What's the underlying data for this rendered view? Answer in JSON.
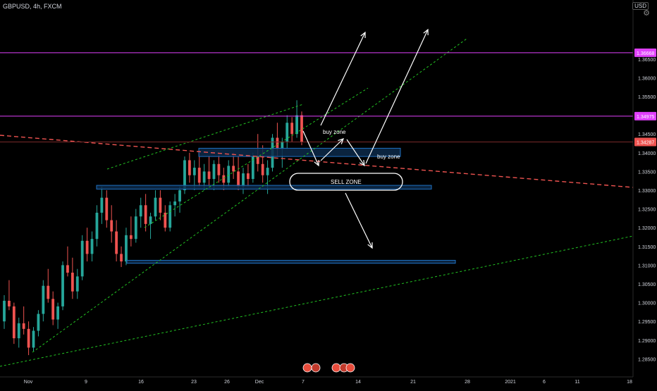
{
  "header": {
    "symbol": "GBPUSD, 4h, FXCM",
    "currency": "USD",
    "settings_icon": "gear-icon"
  },
  "colors": {
    "background": "#000000",
    "bullish": "#26a69a",
    "bearish": "#ef5350",
    "resistance_line": "#e040fb",
    "trend_line": "#22c322",
    "zone_fill": "#0d2a4a",
    "zone_border": "#1f6fbf",
    "arrow": "#ffffff",
    "price_line": "#ef5350",
    "axis_text": "#d1d4dc"
  },
  "chart_data": {
    "type": "candlestick",
    "symbol": "GBPUSD",
    "timeframe": "4h",
    "source": "FXCM",
    "ylim": [
      1.28,
      1.375
    ],
    "y_ticks": [
      "1.28500",
      "1.29000",
      "1.29500",
      "1.30000",
      "1.30500",
      "1.31000",
      "1.31500",
      "1.32000",
      "1.32500",
      "1.33000",
      "1.33500",
      "1.34000",
      "1.34500",
      "1.35000",
      "1.35500",
      "1.36000",
      "1.36500"
    ],
    "x_ticks": [
      "Nov",
      "9",
      "16",
      "23",
      "26",
      "Dec",
      "7",
      "14",
      "21",
      "28",
      "2021",
      "6",
      "11",
      "18"
    ],
    "price_badges": [
      {
        "label": "1.36668",
        "value": 1.36668,
        "color": "#e040fb"
      },
      {
        "label": "1.34975",
        "value": 1.34975,
        "color": "#e040fb"
      },
      {
        "label": "1.34287",
        "value": 1.34287,
        "color": "#ef5350"
      }
    ],
    "horizontal_lines": [
      {
        "value": 1.36668,
        "color": "#e040fb"
      },
      {
        "value": 1.34975,
        "color": "#e040fb"
      }
    ],
    "annotations": [
      {
        "text": "buy zone",
        "price": 1.3405
      },
      {
        "text": "buy zone",
        "price": 1.3355
      },
      {
        "text": "SELL ZONE",
        "price": 1.3275
      }
    ],
    "zones": [
      {
        "price_top": 1.3412,
        "price_bottom": 1.339
      },
      {
        "price_top": 1.3313,
        "price_bottom": 1.3303
      },
      {
        "price_top": 1.3113,
        "price_bottom": 1.3105
      }
    ],
    "candles_approx": [
      [
        1.295,
        1.302,
        1.293,
        1.3005
      ],
      [
        1.3005,
        1.306,
        1.298,
        1.299
      ],
      [
        1.299,
        1.3,
        1.289,
        1.2905
      ],
      [
        1.2905,
        1.296,
        1.288,
        1.2945
      ],
      [
        1.2945,
        1.299,
        1.2915,
        1.293
      ],
      [
        1.293,
        1.295,
        1.286,
        1.288
      ],
      [
        1.288,
        1.2935,
        1.287,
        1.2925
      ],
      [
        1.2925,
        1.298,
        1.291,
        1.297
      ],
      [
        1.297,
        1.306,
        1.295,
        1.3045
      ],
      [
        1.3045,
        1.309,
        1.3,
        1.301
      ],
      [
        1.301,
        1.303,
        1.294,
        1.2955
      ],
      [
        1.2955,
        1.3,
        1.293,
        1.299
      ],
      [
        1.299,
        1.311,
        1.298,
        1.31
      ],
      [
        1.31,
        1.315,
        1.307,
        1.308
      ],
      [
        1.308,
        1.312,
        1.301,
        1.303
      ],
      [
        1.303,
        1.309,
        1.301,
        1.307
      ],
      [
        1.307,
        1.318,
        1.306,
        1.3165
      ],
      [
        1.3165,
        1.32,
        1.311,
        1.313
      ],
      [
        1.313,
        1.319,
        1.311,
        1.317
      ],
      [
        1.317,
        1.326,
        1.315,
        1.324
      ],
      [
        1.324,
        1.331,
        1.321,
        1.328
      ],
      [
        1.328,
        1.33,
        1.32,
        1.322
      ],
      [
        1.322,
        1.326,
        1.316,
        1.319
      ],
      [
        1.319,
        1.322,
        1.311,
        1.313
      ],
      [
        1.313,
        1.315,
        1.3095,
        1.311
      ],
      [
        1.311,
        1.32,
        1.31,
        1.318
      ],
      [
        1.318,
        1.323,
        1.315,
        1.317
      ],
      [
        1.317,
        1.325,
        1.316,
        1.323
      ],
      [
        1.323,
        1.328,
        1.32,
        1.326
      ],
      [
        1.326,
        1.329,
        1.319,
        1.321
      ],
      [
        1.321,
        1.324,
        1.317,
        1.323
      ],
      [
        1.323,
        1.33,
        1.322,
        1.328
      ],
      [
        1.328,
        1.33,
        1.322,
        1.324
      ],
      [
        1.324,
        1.326,
        1.319,
        1.32
      ],
      [
        1.32,
        1.327,
        1.319,
        1.326
      ],
      [
        1.326,
        1.329,
        1.323,
        1.327
      ],
      [
        1.327,
        1.331,
        1.324,
        1.33
      ],
      [
        1.33,
        1.339,
        1.329,
        1.338
      ],
      [
        1.338,
        1.34,
        1.332,
        1.334
      ],
      [
        1.334,
        1.338,
        1.33,
        1.336
      ],
      [
        1.336,
        1.34,
        1.331,
        1.332
      ],
      [
        1.332,
        1.337,
        1.33,
        1.335
      ],
      [
        1.335,
        1.339,
        1.331,
        1.333
      ],
      [
        1.333,
        1.338,
        1.33,
        1.337
      ],
      [
        1.337,
        1.3395,
        1.332,
        1.334
      ],
      [
        1.334,
        1.336,
        1.33,
        1.332
      ],
      [
        1.332,
        1.338,
        1.331,
        1.3365
      ],
      [
        1.3365,
        1.34,
        1.333,
        1.335
      ],
      [
        1.335,
        1.339,
        1.33,
        1.331
      ],
      [
        1.331,
        1.336,
        1.329,
        1.3345
      ],
      [
        1.3345,
        1.337,
        1.331,
        1.333
      ],
      [
        1.333,
        1.34,
        1.332,
        1.339
      ],
      [
        1.339,
        1.345,
        1.335,
        1.337
      ],
      [
        1.337,
        1.342,
        1.332,
        1.334
      ],
      [
        1.334,
        1.338,
        1.329,
        1.336
      ],
      [
        1.336,
        1.345,
        1.335,
        1.344
      ],
      [
        1.344,
        1.348,
        1.339,
        1.341
      ],
      [
        1.341,
        1.344,
        1.336,
        1.343
      ],
      [
        1.343,
        1.35,
        1.341,
        1.348
      ],
      [
        1.348,
        1.3495,
        1.343,
        1.345
      ],
      [
        1.345,
        1.354,
        1.344,
        1.35
      ],
      [
        1.35,
        1.351,
        1.342,
        1.3429
      ]
    ]
  }
}
